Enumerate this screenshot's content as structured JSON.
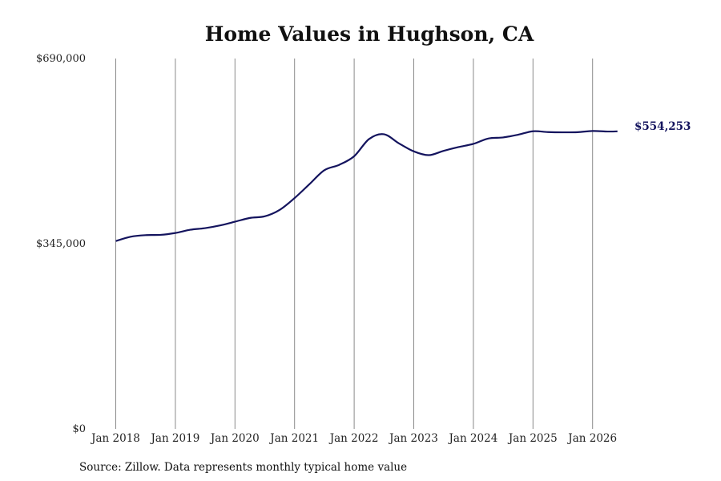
{
  "chart_data": {
    "type": "line",
    "title": "Home Values in Hughson, CA",
    "source": "Source: Zillow. Data represents monthly typical home value",
    "xlabel": "",
    "ylabel": "",
    "ylim": [
      0,
      690000
    ],
    "yticks": [
      {
        "value": 0,
        "label": "$0"
      },
      {
        "value": 345000,
        "label": "$345,000"
      },
      {
        "value": 690000,
        "label": "$690,000"
      }
    ],
    "xticks": [
      {
        "date": "2018-01",
        "label": "Jan 2018"
      },
      {
        "date": "2019-01",
        "label": "Jan 2019"
      },
      {
        "date": "2020-01",
        "label": "Jan 2020"
      },
      {
        "date": "2021-01",
        "label": "Jan 2021"
      },
      {
        "date": "2022-01",
        "label": "Jan 2022"
      },
      {
        "date": "2023-01",
        "label": "Jan 2023"
      },
      {
        "date": "2024-01",
        "label": "Jan 2024"
      },
      {
        "date": "2025-01",
        "label": "Jan 2025"
      },
      {
        "date": "2026-01",
        "label": "Jan 2026"
      }
    ],
    "grid": "vertical",
    "line_color": "#14145e",
    "end_label": "$554,253",
    "series": [
      {
        "name": "",
        "points": [
          {
            "x": "2018-01",
            "y": 350000
          },
          {
            "x": "2018-04",
            "y": 358000
          },
          {
            "x": "2018-07",
            "y": 361000
          },
          {
            "x": "2018-10",
            "y": 361500
          },
          {
            "x": "2019-01",
            "y": 365000
          },
          {
            "x": "2019-04",
            "y": 371000
          },
          {
            "x": "2019-07",
            "y": 374000
          },
          {
            "x": "2019-10",
            "y": 379000
          },
          {
            "x": "2020-01",
            "y": 386000
          },
          {
            "x": "2020-04",
            "y": 393000
          },
          {
            "x": "2020-07",
            "y": 396000
          },
          {
            "x": "2020-10",
            "y": 408000
          },
          {
            "x": "2021-01",
            "y": 430000
          },
          {
            "x": "2021-04",
            "y": 456000
          },
          {
            "x": "2021-07",
            "y": 482000
          },
          {
            "x": "2021-10",
            "y": 492000
          },
          {
            "x": "2022-01",
            "y": 508000
          },
          {
            "x": "2022-04",
            "y": 540000
          },
          {
            "x": "2022-07",
            "y": 549000
          },
          {
            "x": "2022-10",
            "y": 532000
          },
          {
            "x": "2023-01",
            "y": 517000
          },
          {
            "x": "2023-04",
            "y": 510000
          },
          {
            "x": "2023-07",
            "y": 518000
          },
          {
            "x": "2023-10",
            "y": 525000
          },
          {
            "x": "2024-01",
            "y": 531000
          },
          {
            "x": "2024-04",
            "y": 541000
          },
          {
            "x": "2024-07",
            "y": 543000
          },
          {
            "x": "2024-10",
            "y": 548000
          },
          {
            "x": "2025-01",
            "y": 554500
          },
          {
            "x": "2025-04",
            "y": 553000
          },
          {
            "x": "2025-07",
            "y": 552500
          },
          {
            "x": "2025-10",
            "y": 552800
          },
          {
            "x": "2026-01",
            "y": 555000
          },
          {
            "x": "2026-04",
            "y": 554000
          },
          {
            "x": "2026-06",
            "y": 554253
          }
        ]
      }
    ]
  }
}
